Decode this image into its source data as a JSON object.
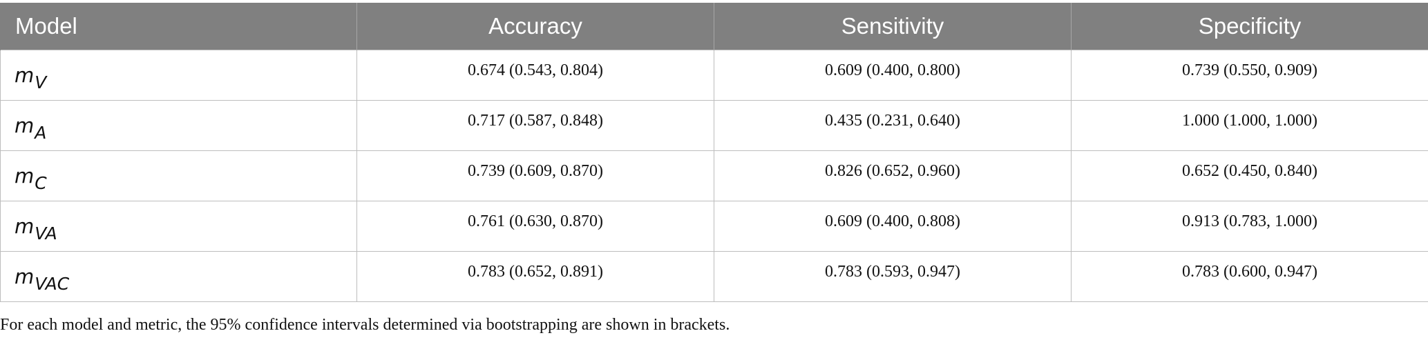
{
  "table": {
    "headers": [
      "Model",
      "Accuracy",
      "Sensitivity",
      "Specificity"
    ],
    "rows": [
      {
        "model_base": "m",
        "model_sub": "V",
        "accuracy": "0.674 (0.543, 0.804)",
        "sensitivity": "0.609 (0.400, 0.800)",
        "specificity": "0.739 (0.550, 0.909)"
      },
      {
        "model_base": "m",
        "model_sub": "A",
        "accuracy": "0.717 (0.587, 0.848)",
        "sensitivity": "0.435 (0.231, 0.640)",
        "specificity": "1.000 (1.000, 1.000)"
      },
      {
        "model_base": "m",
        "model_sub": "C",
        "accuracy": "0.739 (0.609, 0.870)",
        "sensitivity": "0.826 (0.652, 0.960)",
        "specificity": "0.652 (0.450, 0.840)"
      },
      {
        "model_base": "m",
        "model_sub": "VA",
        "accuracy": "0.761 (0.630, 0.870)",
        "sensitivity": "0.609 (0.400, 0.808)",
        "specificity": "0.913 (0.783, 1.000)"
      },
      {
        "model_base": "m",
        "model_sub": "VAC",
        "accuracy": "0.783 (0.652, 0.891)",
        "sensitivity": "0.783 (0.593, 0.947)",
        "specificity": "0.783 (0.600, 0.947)"
      }
    ]
  },
  "footnote": "For each model and metric, the 95% confidence intervals determined via bootstrapping are shown in brackets.",
  "colors": {
    "header_background": "#808080",
    "header_text": "#ffffff",
    "grid_line": "#bdbdbd"
  }
}
